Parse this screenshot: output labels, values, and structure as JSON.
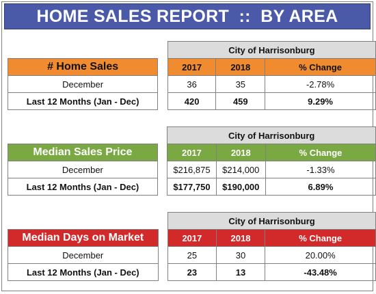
{
  "banner": {
    "title": "HOME SALES REPORT  ::  BY AREA"
  },
  "sections": [
    {
      "city": "City of Harrisonburg",
      "metric": "# Home Sales",
      "col_2017": "2017",
      "col_2018": "2018",
      "col_change": "% Change",
      "rows": [
        {
          "label": "December",
          "v2017": "36",
          "v2018": "35",
          "change": "-2.78%"
        },
        {
          "label": "Last 12 Months (Jan - Dec)",
          "v2017": "420",
          "v2018": "459",
          "change": "9.29%"
        }
      ]
    },
    {
      "city": "City of Harrisonburg",
      "metric": "Median Sales Price",
      "col_2017": "2017",
      "col_2018": "2018",
      "col_change": "% Change",
      "rows": [
        {
          "label": "December",
          "v2017": "$216,875",
          "v2018": "$214,000",
          "change": "-1.33%"
        },
        {
          "label": "Last 12 Months (Jan - Dec)",
          "v2017": "$177,750",
          "v2018": "$190,000",
          "change": "6.89%"
        }
      ]
    },
    {
      "city": "City of Harrisonburg",
      "metric": "Median Days on Market",
      "col_2017": "2017",
      "col_2018": "2018",
      "col_change": "% Change",
      "rows": [
        {
          "label": "December",
          "v2017": "25",
          "v2018": "30",
          "change": "20.00%"
        },
        {
          "label": "Last 12 Months (Jan - Dec)",
          "v2017": "23",
          "v2018": "13",
          "change": "-43.48%"
        }
      ]
    }
  ],
  "colors": {
    "banner": "#4a5aa8",
    "home_sales": "#f08b2f",
    "median_price": "#7aa843",
    "days_on_market": "#d22a2a",
    "city_header": "#dcdcdc"
  }
}
